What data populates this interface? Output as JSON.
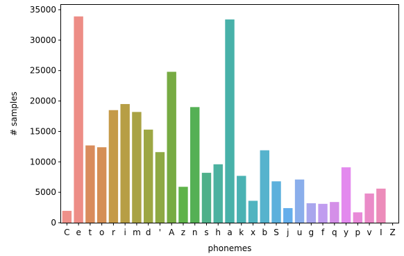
{
  "chart_data": {
    "type": "bar",
    "xlabel": "phonemes",
    "ylabel": "# samples",
    "ylim": [
      0,
      35800
    ],
    "yticks": [
      0,
      5000,
      10000,
      15000,
      20000,
      25000,
      30000,
      35000
    ],
    "grid": false,
    "categories": [
      "C",
      "e",
      "t",
      "o",
      "r",
      "i",
      "m",
      "d",
      "'",
      "A",
      "z",
      "n",
      "s",
      "h",
      "a",
      "k",
      "x",
      "b",
      "S",
      "j",
      "u",
      "g",
      "f",
      "q",
      "y",
      "p",
      "v",
      "I",
      "Z"
    ],
    "values": [
      1950,
      33900,
      12700,
      12400,
      18500,
      19500,
      18200,
      15300,
      11600,
      24800,
      5900,
      19000,
      8200,
      9600,
      33400,
      7700,
      3600,
      11900,
      6800,
      2400,
      7100,
      3200,
      3100,
      3400,
      9100,
      1700,
      4800,
      5600,
      0
    ],
    "colors": [
      "#ee918a",
      "#ed8d86",
      "#d98c5c",
      "#d58f55",
      "#c59a48",
      "#b79e45",
      "#a9a244",
      "#9da744",
      "#8ea944",
      "#77ab43",
      "#5fb34a",
      "#55b055",
      "#4fb08a",
      "#4cb2a0",
      "#48b1a9",
      "#4ab2b3",
      "#50b4c0",
      "#56b3cd",
      "#5cb0dc",
      "#64aeeb",
      "#8aaeeb",
      "#a9a6ed",
      "#c09cef",
      "#d48fe8",
      "#e38aee",
      "#e88ad8",
      "#ea8bc8",
      "#ec8cba",
      "#ed8fab"
    ]
  }
}
